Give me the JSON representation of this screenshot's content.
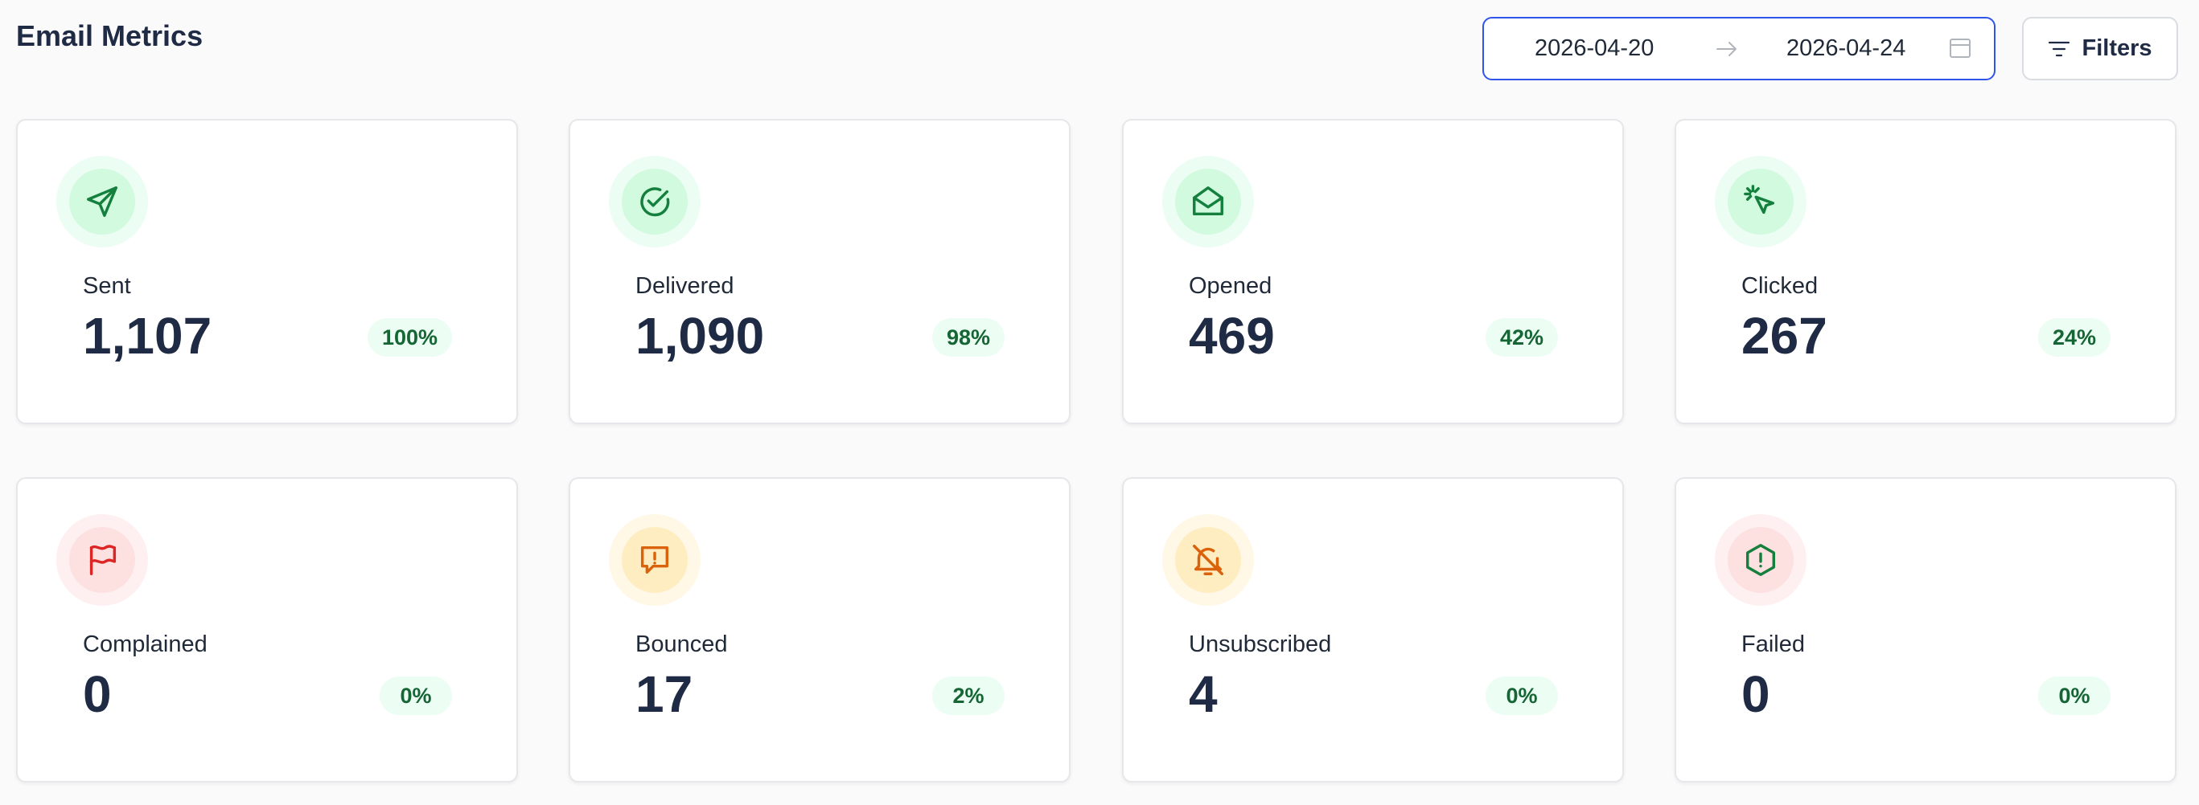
{
  "header": {
    "title": "Email Metrics",
    "date_start": "2026-04-20",
    "date_end": "2026-04-24",
    "filters_label": "Filters"
  },
  "colors": {
    "accent": "#2f54eb",
    "success": "#15803d",
    "danger": "#dc2626",
    "warning": "#d9620a"
  },
  "cards": [
    {
      "label": "Sent",
      "value": "1,107",
      "percent": "100%",
      "icon": "send-icon"
    },
    {
      "label": "Delivered",
      "value": "1,090",
      "percent": "98%",
      "icon": "check-circle-icon"
    },
    {
      "label": "Opened",
      "value": "469",
      "percent": "42%",
      "icon": "mail-open-icon"
    },
    {
      "label": "Clicked",
      "value": "267",
      "percent": "24%",
      "icon": "pointer-click-icon"
    },
    {
      "label": "Complained",
      "value": "0",
      "percent": "0%",
      "icon": "flag-icon"
    },
    {
      "label": "Bounced",
      "value": "17",
      "percent": "2%",
      "icon": "message-alert-icon"
    },
    {
      "label": "Unsubscribed",
      "value": "4",
      "percent": "0%",
      "icon": "bell-off-icon"
    },
    {
      "label": "Failed",
      "value": "0",
      "percent": "0%",
      "icon": "hexagon-alert-icon"
    }
  ]
}
